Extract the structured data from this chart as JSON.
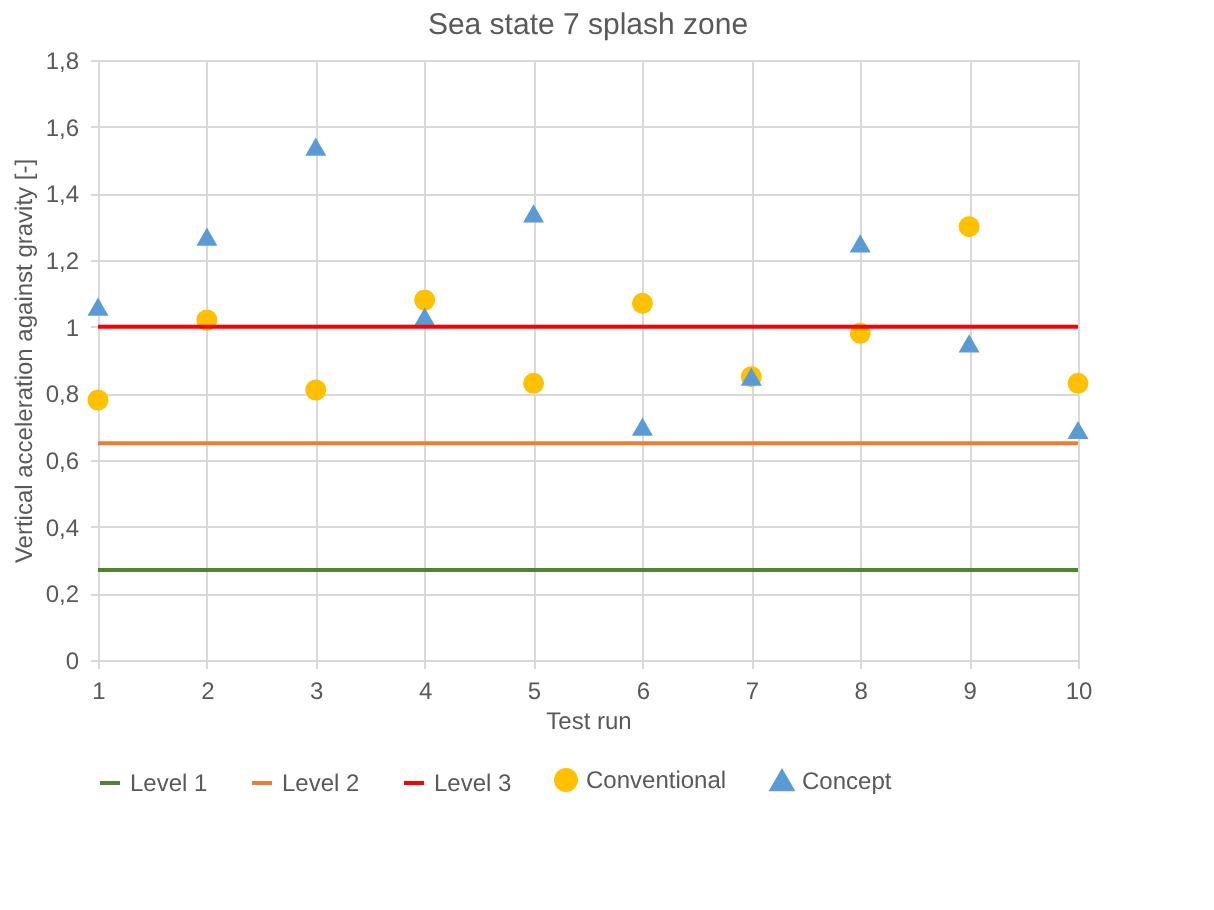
{
  "chart_data": {
    "type": "scatter",
    "title": "Sea state 7 splash zone",
    "xlabel": "Test run",
    "ylabel": "Vertical acceleration against gravity [-]",
    "x": [
      1,
      2,
      3,
      4,
      5,
      6,
      7,
      8,
      9,
      10
    ],
    "ref_lines": [
      {
        "axis": "y",
        "value": 0.27,
        "label": "Level 1",
        "color": "#548235"
      },
      {
        "axis": "y",
        "value": 0.65,
        "label": "Level 2",
        "color": "#ed7d31"
      },
      {
        "axis": "y",
        "value": 1.0,
        "label": "Level 3",
        "color": "#ff0000"
      }
    ],
    "series": [
      {
        "name": "Conventional",
        "color": "#ffc000",
        "marker": "circle",
        "values": [
          0.78,
          1.02,
          0.81,
          1.08,
          0.83,
          1.07,
          0.85,
          0.98,
          1.3,
          0.83
        ]
      },
      {
        "name": "Concept",
        "color": "#5b9bd5",
        "marker": "triangle",
        "values": [
          1.06,
          1.27,
          1.54,
          1.03,
          1.34,
          0.7,
          0.85,
          1.25,
          0.95,
          0.69
        ]
      }
    ],
    "xlim": [
      1,
      10
    ],
    "xticks": [
      1,
      2,
      3,
      4,
      5,
      6,
      7,
      8,
      9,
      10
    ],
    "ylim": [
      0,
      1.8
    ],
    "yticks": [
      {
        "value": 0,
        "label": "0"
      },
      {
        "value": 0.2,
        "label": "0,2"
      },
      {
        "value": 0.4,
        "label": "0,4"
      },
      {
        "value": 0.6,
        "label": "0,6"
      },
      {
        "value": 0.8,
        "label": "0,8"
      },
      {
        "value": 1,
        "label": "1"
      },
      {
        "value": 1.2,
        "label": "1,2"
      },
      {
        "value": 1.4,
        "label": "1,4"
      },
      {
        "value": 1.6,
        "label": "1,6"
      },
      {
        "value": 1.8,
        "label": "1,8"
      }
    ],
    "grid": true,
    "legend": "bottom"
  }
}
